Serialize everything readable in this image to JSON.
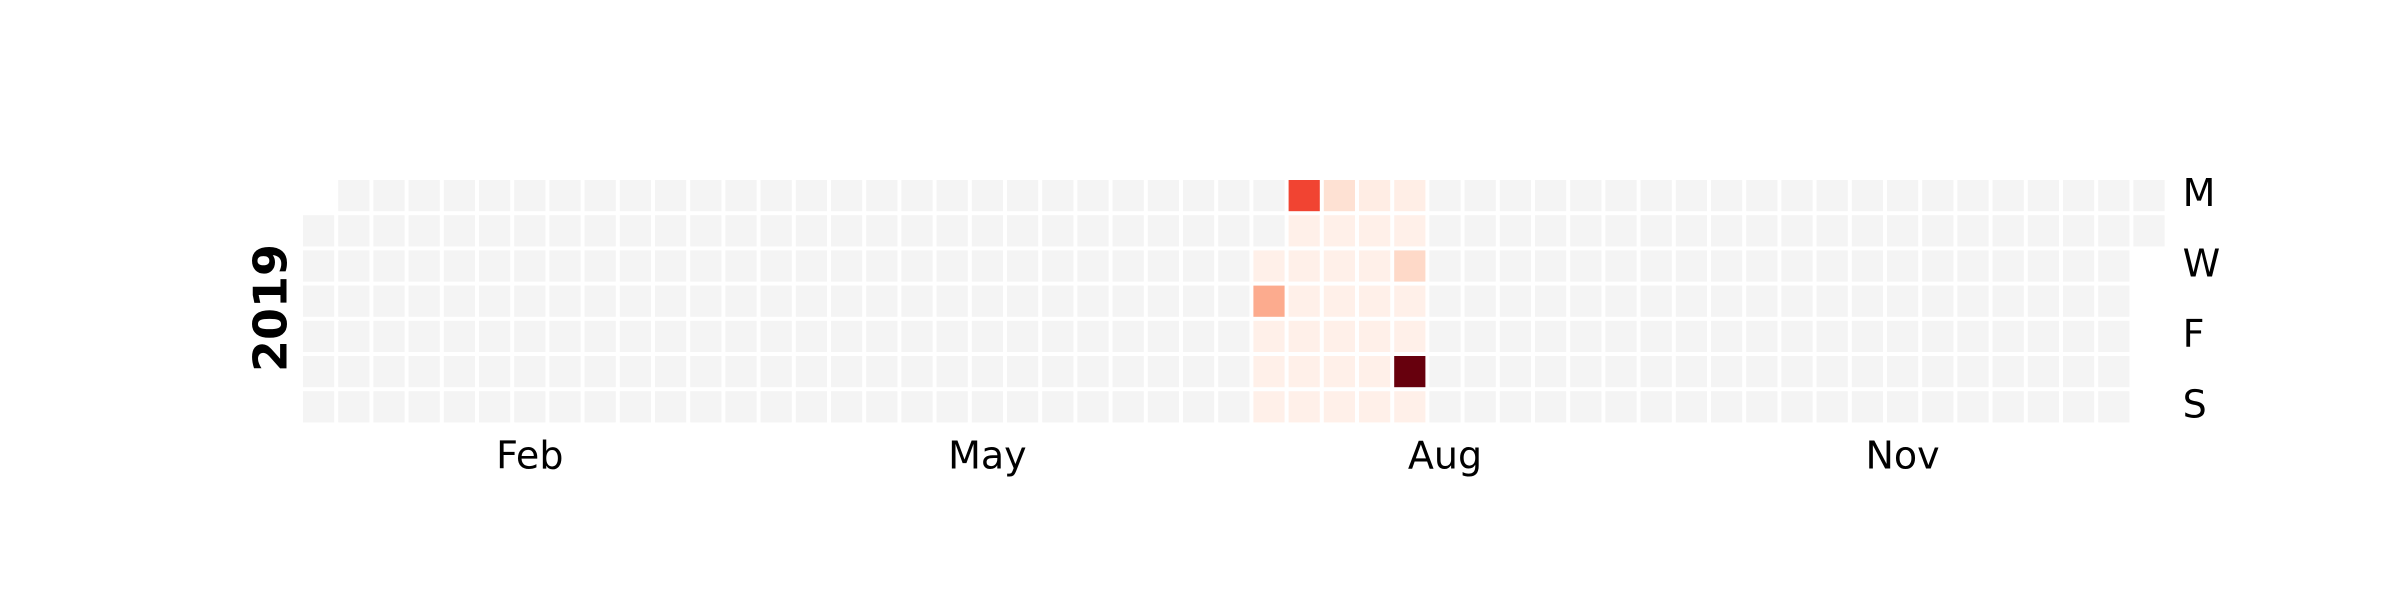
{
  "chart_data": {
    "type": "heatmap",
    "subtype": "calendar",
    "year": "2019",
    "first_weekday": "Tuesday",
    "num_days": 365,
    "week_rows": [
      "Mon",
      "Tue",
      "Wed",
      "Thu",
      "Fri",
      "Sat",
      "Sun"
    ],
    "day_labels": [
      {
        "label": "M",
        "row": 0
      },
      {
        "label": "W",
        "row": 2
      },
      {
        "label": "F",
        "row": 4
      },
      {
        "label": "S",
        "row": 6
      }
    ],
    "month_labels": [
      {
        "label": "Feb",
        "month": 2
      },
      {
        "label": "May",
        "month": 5
      },
      {
        "label": "Aug",
        "month": 8
      },
      {
        "label": "Nov",
        "month": 11
      }
    ],
    "colormap": "Reds",
    "empty_color": "#f4f4f4",
    "grid": false,
    "legend": "none",
    "background_value": 0,
    "value_range": [
      0,
      100
    ],
    "active_range": {
      "start": "2019-07-10",
      "end": "2019-08-11",
      "base_value": 3
    },
    "highlights": [
      {
        "date": "2019-07-11",
        "value": 30
      },
      {
        "date": "2019-07-15",
        "value": 60
      },
      {
        "date": "2019-07-22",
        "value": 12
      },
      {
        "date": "2019-07-29",
        "value": 5
      },
      {
        "date": "2019-08-05",
        "value": 4
      },
      {
        "date": "2019-08-07",
        "value": 15
      },
      {
        "date": "2019-08-10",
        "value": 100
      }
    ]
  }
}
